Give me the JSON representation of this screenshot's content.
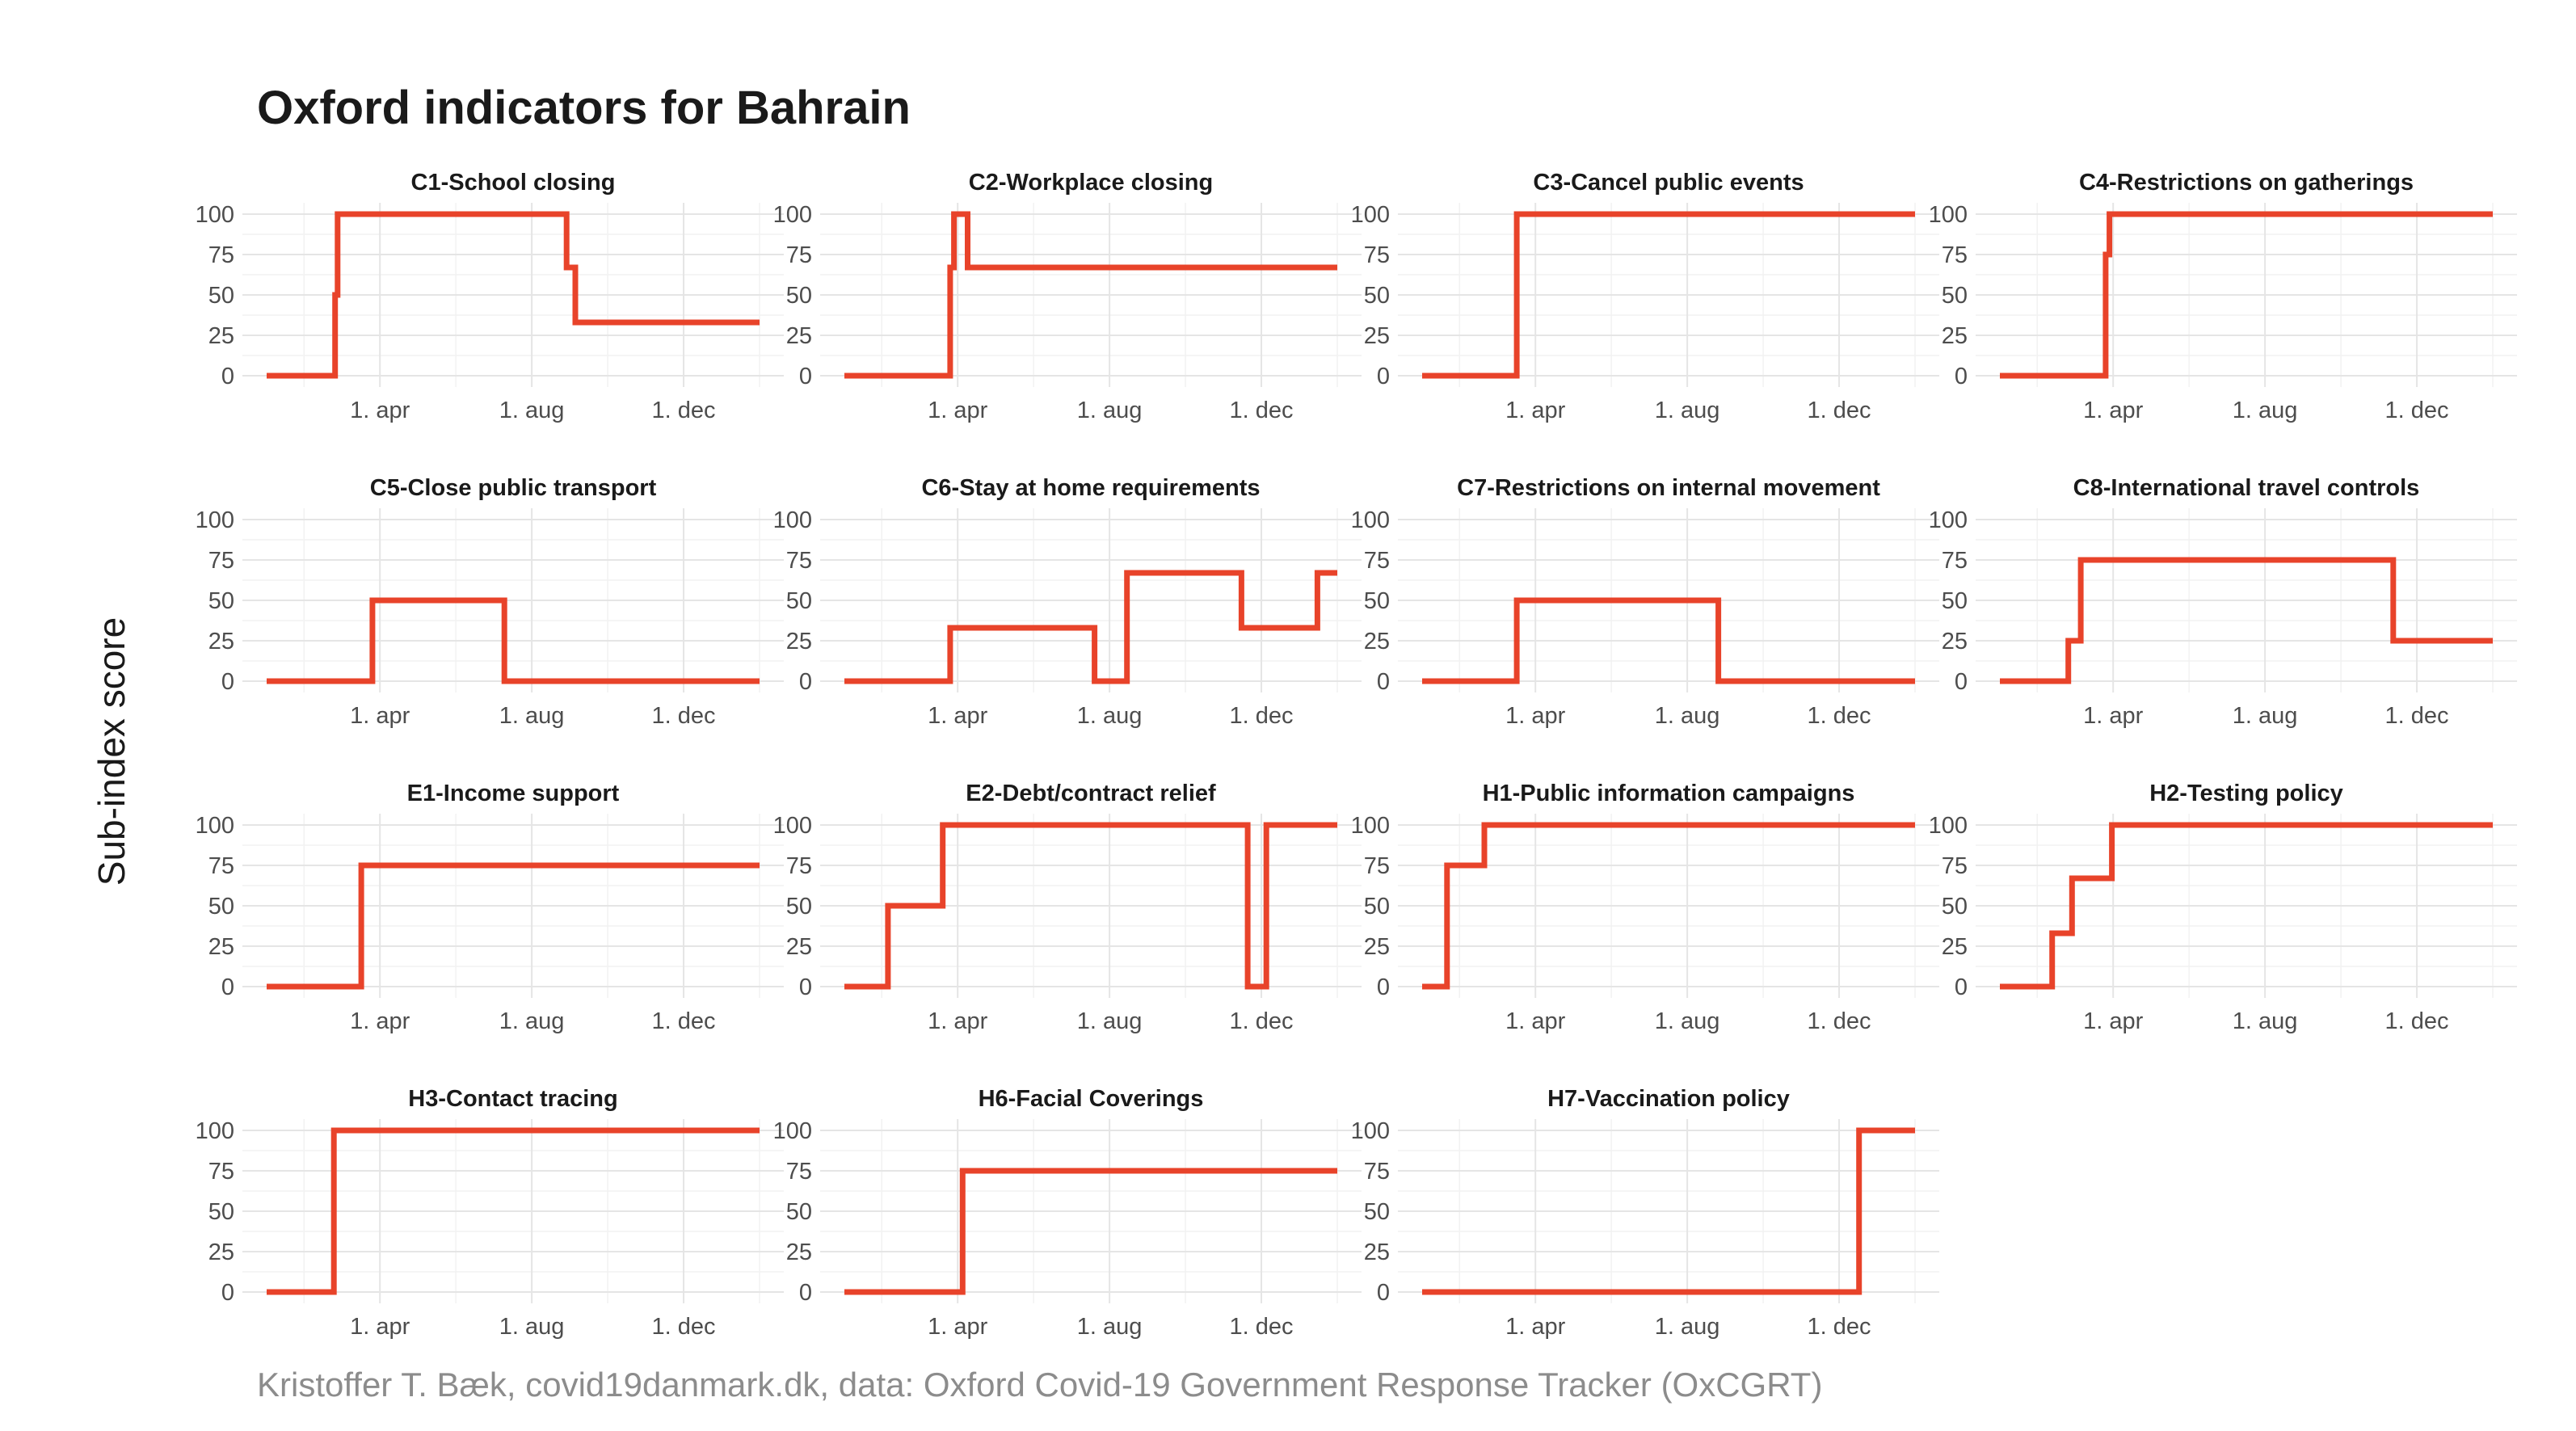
{
  "title": "Oxford indicators for Bahrain",
  "ylabel": "Sub-index score",
  "caption": "Kristoffer T. Bæk, covid19danmark.dk, data: Oxford Covid-19 Government Response Tracker (OxCGRT)",
  "colors": {
    "series": "#e8432a",
    "grid": "#e5e5e5",
    "caption": "#8c8c8c"
  },
  "chart_data": [
    {
      "type": "line",
      "title": "C1-School closing",
      "xlabel": "",
      "ylabel": "",
      "ylim": [
        0,
        100
      ],
      "xlim": [
        "2020-01-01",
        "2021-01-31"
      ],
      "x_ticks": [
        "1. apr",
        "1. aug",
        "1. dec"
      ],
      "y_ticks": [
        0,
        25,
        50,
        75,
        100
      ],
      "steps": [
        [
          "2020-01-01",
          0
        ],
        [
          "2020-02-25",
          50
        ],
        [
          "2020-02-27",
          100
        ],
        [
          "2020-08-29",
          67
        ],
        [
          "2020-09-05",
          33
        ],
        [
          "2021-01-31",
          33
        ]
      ]
    },
    {
      "type": "line",
      "title": "C2-Workplace closing",
      "xlabel": "",
      "ylabel": "",
      "ylim": [
        0,
        100
      ],
      "xlim": [
        "2020-01-01",
        "2021-01-31"
      ],
      "x_ticks": [
        "1. apr",
        "1. aug",
        "1. dec"
      ],
      "y_ticks": [
        0,
        25,
        50,
        75,
        100
      ],
      "steps": [
        [
          "2020-01-01",
          0
        ],
        [
          "2020-03-26",
          67
        ],
        [
          "2020-03-29",
          100
        ],
        [
          "2020-04-09",
          67
        ],
        [
          "2021-01-31",
          67
        ]
      ]
    },
    {
      "type": "line",
      "title": "C3-Cancel public events",
      "xlabel": "",
      "ylabel": "",
      "ylim": [
        0,
        100
      ],
      "xlim": [
        "2020-01-01",
        "2021-01-31"
      ],
      "x_ticks": [
        "1. apr",
        "1. aug",
        "1. dec"
      ],
      "y_ticks": [
        0,
        25,
        50,
        75,
        100
      ],
      "steps": [
        [
          "2020-01-01",
          0
        ],
        [
          "2020-03-17",
          100
        ],
        [
          "2021-01-31",
          100
        ]
      ]
    },
    {
      "type": "line",
      "title": "C4-Restrictions on gatherings",
      "xlabel": "",
      "ylabel": "",
      "ylim": [
        0,
        100
      ],
      "xlim": [
        "2020-01-01",
        "2021-01-31"
      ],
      "x_ticks": [
        "1. apr",
        "1. aug",
        "1. dec"
      ],
      "y_ticks": [
        0,
        25,
        50,
        75,
        100
      ],
      "steps": [
        [
          "2020-01-01",
          0
        ],
        [
          "2020-03-26",
          75
        ],
        [
          "2020-03-29",
          100
        ],
        [
          "2021-01-31",
          100
        ]
      ]
    },
    {
      "type": "line",
      "title": "C5-Close public transport",
      "xlabel": "",
      "ylabel": "",
      "ylim": [
        0,
        100
      ],
      "xlim": [
        "2020-01-01",
        "2021-01-31"
      ],
      "x_ticks": [
        "1. apr",
        "1. aug",
        "1. dec"
      ],
      "y_ticks": [
        0,
        25,
        50,
        75,
        100
      ],
      "steps": [
        [
          "2020-01-01",
          0
        ],
        [
          "2020-03-26",
          50
        ],
        [
          "2020-07-10",
          0
        ],
        [
          "2021-01-31",
          0
        ]
      ]
    },
    {
      "type": "line",
      "title": "C6-Stay at home requirements",
      "xlabel": "",
      "ylabel": "",
      "ylim": [
        0,
        100
      ],
      "xlim": [
        "2020-01-01",
        "2021-01-31"
      ],
      "x_ticks": [
        "1. apr",
        "1. aug",
        "1. dec"
      ],
      "y_ticks": [
        0,
        25,
        50,
        75,
        100
      ],
      "steps": [
        [
          "2020-01-01",
          0
        ],
        [
          "2020-03-26",
          33
        ],
        [
          "2020-07-20",
          0
        ],
        [
          "2020-08-15",
          67
        ],
        [
          "2020-11-15",
          33
        ],
        [
          "2021-01-15",
          67
        ],
        [
          "2021-01-31",
          67
        ]
      ]
    },
    {
      "type": "line",
      "title": "C7-Restrictions on internal movement",
      "xlabel": "",
      "ylabel": "",
      "ylim": [
        0,
        100
      ],
      "xlim": [
        "2020-01-01",
        "2021-01-31"
      ],
      "x_ticks": [
        "1. apr",
        "1. aug",
        "1. dec"
      ],
      "y_ticks": [
        0,
        25,
        50,
        75,
        100
      ],
      "steps": [
        [
          "2020-01-01",
          0
        ],
        [
          "2020-03-17",
          50
        ],
        [
          "2020-08-26",
          0
        ],
        [
          "2021-01-31",
          0
        ]
      ]
    },
    {
      "type": "line",
      "title": "C8-International travel controls",
      "xlabel": "",
      "ylabel": "",
      "ylim": [
        0,
        100
      ],
      "xlim": [
        "2020-01-01",
        "2021-01-31"
      ],
      "x_ticks": [
        "1. apr",
        "1. aug",
        "1. dec"
      ],
      "y_ticks": [
        0,
        25,
        50,
        75,
        100
      ],
      "steps": [
        [
          "2020-01-01",
          0
        ],
        [
          "2020-02-25",
          25
        ],
        [
          "2020-03-06",
          75
        ],
        [
          "2020-11-12",
          25
        ],
        [
          "2021-01-31",
          25
        ]
      ]
    },
    {
      "type": "line",
      "title": "E1-Income support",
      "xlabel": "",
      "ylabel": "",
      "ylim": [
        0,
        100
      ],
      "xlim": [
        "2020-01-01",
        "2021-01-31"
      ],
      "x_ticks": [
        "1. apr",
        "1. aug",
        "1. dec"
      ],
      "y_ticks": [
        0,
        25,
        50,
        75,
        100
      ],
      "steps": [
        [
          "2020-01-01",
          0
        ],
        [
          "2020-03-17",
          75
        ],
        [
          "2021-01-31",
          75
        ]
      ]
    },
    {
      "type": "line",
      "title": "E2-Debt/contract relief",
      "xlabel": "",
      "ylabel": "",
      "ylim": [
        0,
        100
      ],
      "xlim": [
        "2020-01-01",
        "2021-01-31"
      ],
      "x_ticks": [
        "1. apr",
        "1. aug",
        "1. dec"
      ],
      "y_ticks": [
        0,
        25,
        50,
        75,
        100
      ],
      "steps": [
        [
          "2020-01-01",
          0
        ],
        [
          "2020-02-05",
          50
        ],
        [
          "2020-03-20",
          100
        ],
        [
          "2020-11-20",
          0
        ],
        [
          "2020-12-05",
          100
        ],
        [
          "2021-01-31",
          100
        ]
      ]
    },
    {
      "type": "line",
      "title": "H1-Public information campaigns",
      "xlabel": "",
      "ylabel": "",
      "ylim": [
        0,
        100
      ],
      "xlim": [
        "2020-01-01",
        "2021-01-31"
      ],
      "x_ticks": [
        "1. apr",
        "1. aug",
        "1. dec"
      ],
      "y_ticks": [
        0,
        25,
        50,
        75,
        100
      ],
      "steps": [
        [
          "2020-01-01",
          0
        ],
        [
          "2020-01-21",
          75
        ],
        [
          "2020-02-20",
          100
        ],
        [
          "2021-01-31",
          100
        ]
      ]
    },
    {
      "type": "line",
      "title": "H2-Testing policy",
      "xlabel": "",
      "ylabel": "",
      "ylim": [
        0,
        100
      ],
      "xlim": [
        "2020-01-01",
        "2021-01-31"
      ],
      "x_ticks": [
        "1. apr",
        "1. aug",
        "1. dec"
      ],
      "y_ticks": [
        0,
        25,
        50,
        75,
        100
      ],
      "steps": [
        [
          "2020-01-01",
          0
        ],
        [
          "2020-02-12",
          33
        ],
        [
          "2020-02-28",
          67
        ],
        [
          "2020-03-31",
          100
        ],
        [
          "2021-01-31",
          100
        ]
      ]
    },
    {
      "type": "line",
      "title": "H3-Contact tracing",
      "xlabel": "",
      "ylabel": "",
      "ylim": [
        0,
        100
      ],
      "xlim": [
        "2020-01-01",
        "2021-01-31"
      ],
      "x_ticks": [
        "1. apr",
        "1. aug",
        "1. dec"
      ],
      "y_ticks": [
        0,
        25,
        50,
        75,
        100
      ],
      "steps": [
        [
          "2020-01-01",
          0
        ],
        [
          "2020-02-24",
          100
        ],
        [
          "2021-01-31",
          100
        ]
      ]
    },
    {
      "type": "line",
      "title": "H6-Facial Coverings",
      "xlabel": "",
      "ylabel": "",
      "ylim": [
        0,
        100
      ],
      "xlim": [
        "2020-01-01",
        "2021-01-31"
      ],
      "x_ticks": [
        "1. apr",
        "1. aug",
        "1. dec"
      ],
      "y_ticks": [
        0,
        25,
        50,
        75,
        100
      ],
      "steps": [
        [
          "2020-01-01",
          0
        ],
        [
          "2020-04-05",
          75
        ],
        [
          "2021-01-31",
          75
        ]
      ]
    },
    {
      "type": "line",
      "title": "H7-Vaccination policy",
      "xlabel": "",
      "ylabel": "",
      "ylim": [
        0,
        100
      ],
      "xlim": [
        "2020-01-01",
        "2021-01-31"
      ],
      "x_ticks": [
        "1. apr",
        "1. aug",
        "1. dec"
      ],
      "y_ticks": [
        0,
        25,
        50,
        75,
        100
      ],
      "steps": [
        [
          "2020-01-01",
          0
        ],
        [
          "2020-12-17",
          100
        ],
        [
          "2021-01-31",
          100
        ]
      ]
    }
  ]
}
